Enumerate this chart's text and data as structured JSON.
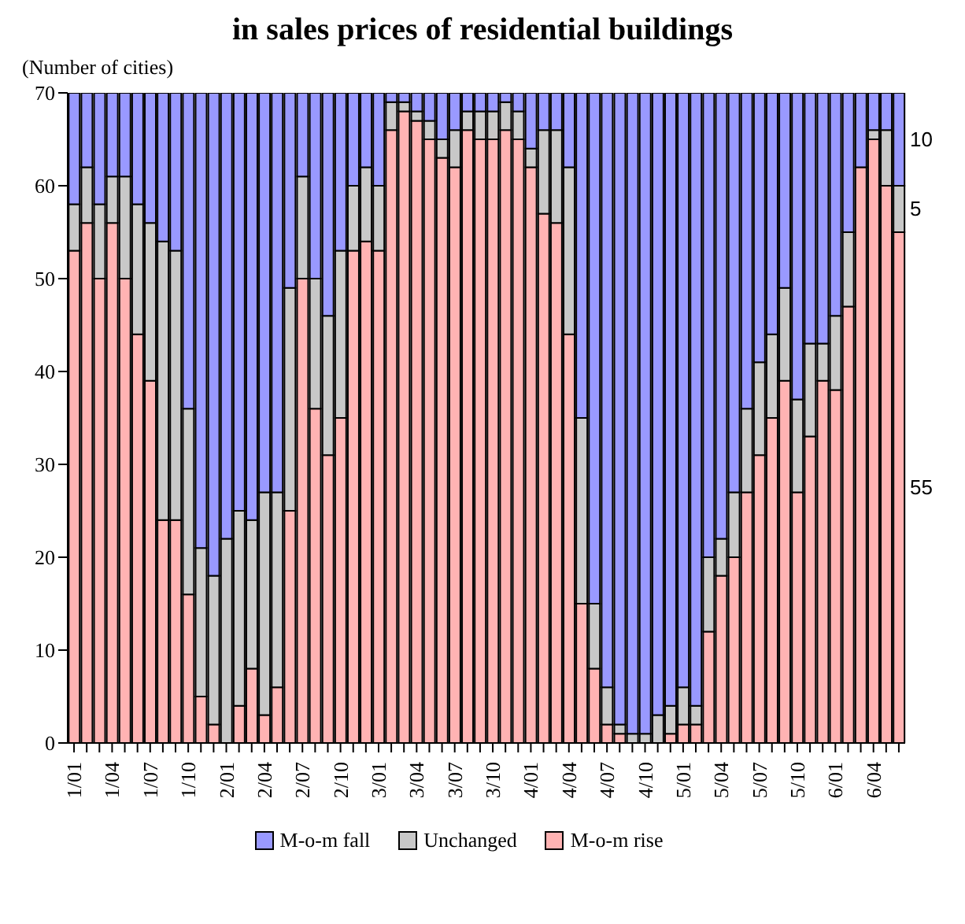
{
  "chart_data": {
    "type": "bar",
    "title": "in sales prices of residential buildings",
    "ylabel": "(Number of cities)",
    "stacked": true,
    "ylim": [
      0,
      70
    ],
    "yticks": [
      0,
      10,
      20,
      30,
      40,
      50,
      60,
      70
    ],
    "legend": "bottom",
    "categories": [
      "1/01",
      null,
      null,
      "1/04",
      null,
      null,
      "1/07",
      null,
      null,
      "1/10",
      null,
      null,
      "2/01",
      null,
      null,
      "2/04",
      null,
      null,
      "2/07",
      null,
      null,
      "2/10",
      null,
      null,
      "3/01",
      null,
      null,
      "3/04",
      null,
      null,
      "3/07",
      null,
      null,
      "3/10",
      null,
      null,
      "4/01",
      null,
      null,
      "4/04",
      null,
      null,
      "4/07",
      null,
      null,
      "4/10",
      null,
      null,
      "5/01",
      null,
      null,
      "5/04",
      null,
      null,
      "5/07",
      null,
      null,
      "5/10",
      null,
      null,
      "6/01",
      null,
      null,
      "6/04",
      null,
      null
    ],
    "series": [
      {
        "name": "M-o-m rise",
        "color": "#ffb3b3",
        "values": [
          53,
          56,
          50,
          56,
          50,
          44,
          39,
          24,
          24,
          16,
          5,
          2,
          0,
          4,
          8,
          3,
          6,
          25,
          50,
          36,
          31,
          35,
          53,
          54,
          53,
          66,
          68,
          67,
          65,
          63,
          62,
          66,
          65,
          65,
          66,
          65,
          62,
          57,
          56,
          44,
          15,
          8,
          2,
          1,
          0,
          0,
          0,
          1,
          2,
          2,
          12,
          18,
          20,
          27,
          31,
          35,
          39,
          27,
          33,
          39,
          38,
          47,
          62,
          65,
          60,
          55
        ],
        "value_labels": [
          null,
          null,
          null,
          null,
          null,
          null,
          null,
          null,
          null,
          null,
          null,
          null,
          null,
          null,
          null,
          null,
          null,
          null,
          null,
          null,
          null,
          null,
          null,
          null,
          null,
          null,
          null,
          null,
          null,
          null,
          null,
          null,
          null,
          null,
          null,
          null,
          null,
          null,
          null,
          null,
          null,
          null,
          null,
          null,
          null,
          null,
          null,
          null,
          null,
          null,
          null,
          null,
          null,
          null,
          null,
          null,
          null,
          null,
          null,
          null,
          null,
          null,
          null,
          null,
          null,
          "55"
        ]
      },
      {
        "name": "Unchanged",
        "color": "#c8c8c8",
        "values": [
          5,
          6,
          8,
          5,
          11,
          14,
          17,
          30,
          29,
          20,
          16,
          16,
          22,
          21,
          16,
          24,
          21,
          24,
          11,
          14,
          15,
          18,
          7,
          8,
          7,
          3,
          1,
          1,
          2,
          2,
          4,
          2,
          3,
          3,
          3,
          3,
          2,
          9,
          10,
          18,
          20,
          7,
          4,
          1,
          1,
          1,
          3,
          3,
          4,
          2,
          8,
          4,
          7,
          9,
          10,
          9,
          10,
          10,
          10,
          4,
          8,
          8,
          0,
          1,
          6,
          5
        ],
        "value_labels": [
          null,
          null,
          null,
          null,
          null,
          null,
          null,
          null,
          null,
          null,
          null,
          null,
          null,
          null,
          null,
          null,
          null,
          null,
          null,
          null,
          null,
          null,
          null,
          null,
          null,
          null,
          null,
          null,
          null,
          null,
          null,
          null,
          null,
          null,
          null,
          null,
          null,
          null,
          null,
          null,
          null,
          null,
          null,
          null,
          null,
          null,
          null,
          null,
          null,
          null,
          null,
          null,
          null,
          null,
          null,
          null,
          null,
          null,
          null,
          null,
          null,
          null,
          null,
          null,
          null,
          "5"
        ]
      },
      {
        "name": "M-o-m fall",
        "color": "#9999ff",
        "values": [
          12,
          8,
          12,
          9,
          9,
          12,
          14,
          16,
          17,
          34,
          49,
          52,
          48,
          45,
          46,
          43,
          43,
          21,
          9,
          20,
          24,
          17,
          10,
          8,
          10,
          1,
          1,
          2,
          3,
          5,
          4,
          2,
          2,
          2,
          1,
          2,
          6,
          4,
          4,
          8,
          35,
          55,
          64,
          68,
          69,
          69,
          67,
          66,
          64,
          66,
          50,
          48,
          43,
          34,
          29,
          26,
          21,
          33,
          27,
          27,
          24,
          15,
          8,
          4,
          4,
          10
        ],
        "value_labels": [
          null,
          null,
          null,
          null,
          null,
          null,
          null,
          null,
          null,
          null,
          null,
          null,
          null,
          null,
          null,
          null,
          null,
          null,
          null,
          null,
          null,
          null,
          null,
          null,
          null,
          null,
          null,
          null,
          null,
          null,
          null,
          null,
          null,
          null,
          null,
          null,
          null,
          null,
          null,
          null,
          null,
          null,
          null,
          null,
          null,
          null,
          null,
          null,
          null,
          null,
          null,
          null,
          null,
          null,
          null,
          null,
          null,
          null,
          null,
          null,
          null,
          null,
          null,
          null,
          null,
          "10"
        ]
      }
    ]
  }
}
